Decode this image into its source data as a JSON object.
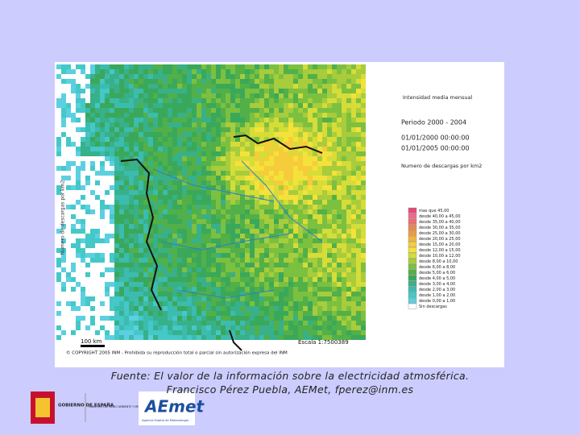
{
  "map": {
    "heading": "Intensidad media mensual",
    "period": "Periodo 2000 - 2004",
    "start": "01/01/2000 00:00:00",
    "end": "01/01/2005 00:00:00",
    "measure": "Numero de descargas por km2",
    "legend": [
      {
        "label": "mas que 45,00",
        "color": "#e8487a"
      },
      {
        "label": "desde 40,00 a 45,00",
        "color": "#ee6a8a"
      },
      {
        "label": "desde 35,00 a 40,00",
        "color": "#e96f6f"
      },
      {
        "label": "desde 30,00 a 35,00",
        "color": "#ec8550"
      },
      {
        "label": "desde 25,00 a 30,00",
        "color": "#f09a40"
      },
      {
        "label": "desde 20,00 a 25,00",
        "color": "#f4b43a"
      },
      {
        "label": "desde 15,00 a 20,00",
        "color": "#f6cc3a"
      },
      {
        "label": "desde 12,00 a 15,00",
        "color": "#f4e23a"
      },
      {
        "label": "desde 10,00 a 12,00",
        "color": "#d6dc38"
      },
      {
        "label": "desde 8,00 a 10,00",
        "color": "#a8cc3c"
      },
      {
        "label": "desde 6,00 a 8,00",
        "color": "#7cc040"
      },
      {
        "label": "desde 5,00 a 6,00",
        "color": "#52b048"
      },
      {
        "label": "desde 4,00 a 5,00",
        "color": "#3aa85a"
      },
      {
        "label": "desde 3,00 a 4,00",
        "color": "#38b08a"
      },
      {
        "label": "desde 2,00 a 3,00",
        "color": "#3cbcae"
      },
      {
        "label": "desde 1,00 a 2,00",
        "color": "#44c8c8"
      },
      {
        "label": "desde 0,00 a 1,00",
        "color": "#5cd0e0"
      },
      {
        "label": "Sin descargas",
        "color": "#ffffff"
      }
    ],
    "scale_bar": "100 km",
    "scale": "Escala 1:7500389",
    "copyright": "© COPYRIGHT 2005 INM - Prohibida su reproducción total o parcial sin autorización expresa del INM"
  },
  "caption": {
    "line1": "Fuente: El valor de la información sobre la electricidad atmosférica.",
    "line2": "Francisco Pérez Puebla, AEMet, fperez@inm.es"
  },
  "logos": {
    "government": "GOBIERNO DE ESPAÑA",
    "ministry": "MINISTERIO DE MEDIO AMBIENTE Y MEDIO RURAL Y MARINO",
    "agency": "AEmet",
    "agency_full": "Agencia Estatal de Meteorología"
  }
}
